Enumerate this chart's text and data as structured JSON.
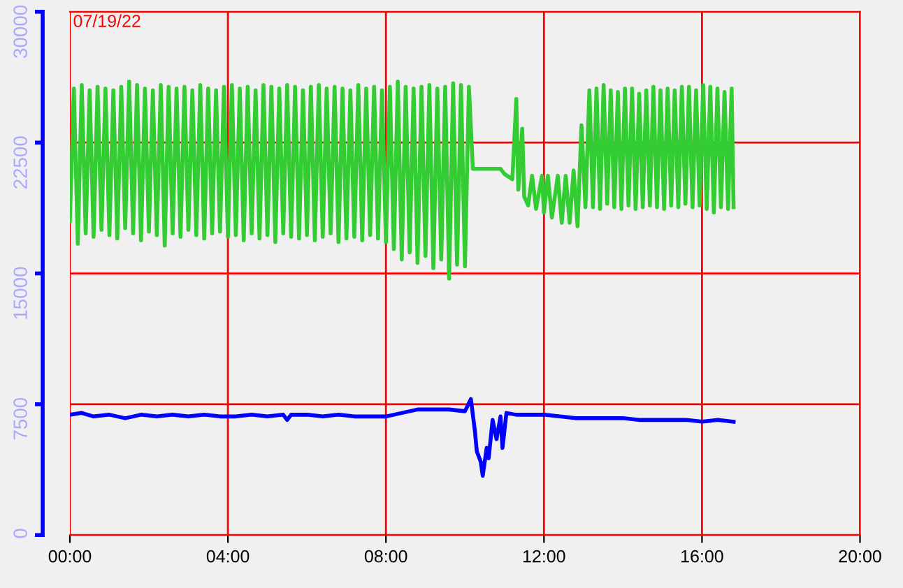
{
  "chart_data": {
    "type": "line",
    "annotations": [
      "07/19/22"
    ],
    "xlim": [
      0,
      20
    ],
    "xticks": [
      {
        "value": 0,
        "label": "00:00"
      },
      {
        "value": 4,
        "label": "04:00"
      },
      {
        "value": 8,
        "label": "08:00"
      },
      {
        "value": 12,
        "label": "12:00"
      },
      {
        "value": 16,
        "label": "16:00"
      },
      {
        "value": 20,
        "label": "20:00"
      }
    ],
    "ylim": [
      0,
      30000
    ],
    "yticks": [
      0,
      7500,
      15000,
      22500,
      30000
    ],
    "grid": true,
    "series": [
      {
        "color": "#33cc33",
        "x": [
          0,
          0.1,
          0.2,
          0.3,
          0.4,
          0.5,
          0.6,
          0.7,
          0.8,
          0.9,
          1.0,
          1.1,
          1.2,
          1.3,
          1.4,
          1.5,
          1.6,
          1.7,
          1.8,
          1.9,
          2.0,
          2.1,
          2.2,
          2.3,
          2.4,
          2.5,
          2.6,
          2.7,
          2.8,
          2.9,
          3.0,
          3.1,
          3.2,
          3.3,
          3.4,
          3.5,
          3.6,
          3.7,
          3.8,
          3.9,
          4.0,
          4.1,
          4.2,
          4.3,
          4.4,
          4.5,
          4.6,
          4.7,
          4.8,
          4.9,
          5.0,
          5.1,
          5.2,
          5.3,
          5.4,
          5.5,
          5.6,
          5.7,
          5.8,
          5.9,
          6.0,
          6.1,
          6.2,
          6.3,
          6.4,
          6.5,
          6.6,
          6.7,
          6.8,
          6.9,
          7.0,
          7.1,
          7.2,
          7.3,
          7.4,
          7.5,
          7.6,
          7.7,
          7.8,
          7.9,
          8.0,
          8.1,
          8.2,
          8.3,
          8.4,
          8.5,
          8.6,
          8.7,
          8.8,
          8.9,
          9.0,
          9.1,
          9.2,
          9.3,
          9.4,
          9.5,
          9.6,
          9.7,
          9.8,
          9.9,
          10.0,
          10.1,
          10.2,
          10.6,
          10.9,
          11.0,
          11.2,
          11.3,
          11.35,
          11.45,
          11.5,
          11.6,
          11.7,
          11.8,
          11.95,
          12.0,
          12.1,
          12.2,
          12.35,
          12.45,
          12.55,
          12.65,
          12.75,
          12.85,
          12.95,
          13.05,
          13.15,
          13.24,
          13.33,
          13.42,
          13.51,
          13.6,
          13.69,
          13.78,
          13.87,
          13.96,
          14.05,
          14.14,
          14.23,
          14.32,
          14.41,
          14.5,
          14.59,
          14.68,
          14.77,
          14.86,
          14.95,
          15.04,
          15.13,
          15.22,
          15.31,
          15.4,
          15.49,
          15.58,
          15.67,
          15.76,
          15.85,
          15.94,
          16.03,
          16.12,
          16.21,
          16.3,
          16.39,
          16.48,
          16.57,
          16.66,
          16.75,
          16.8
        ],
        "values": [
          18000,
          25600,
          16700,
          25800,
          17300,
          25500,
          17100,
          25700,
          17500,
          25600,
          17200,
          25500,
          17000,
          25700,
          17600,
          26000,
          17300,
          25800,
          16900,
          25600,
          17400,
          25500,
          17200,
          25800,
          16600,
          25700,
          17300,
          25600,
          17100,
          25700,
          17500,
          25500,
          17200,
          25800,
          17000,
          25600,
          17300,
          25500,
          17400,
          25700,
          17100,
          25800,
          17200,
          25600,
          16900,
          25700,
          17300,
          25500,
          17000,
          25800,
          17200,
          25700,
          16800,
          25600,
          17300,
          25800,
          17100,
          25700,
          17000,
          25500,
          17200,
          25700,
          16900,
          25800,
          17100,
          25600,
          17300,
          25700,
          16800,
          25600,
          17000,
          25500,
          17100,
          25800,
          16900,
          25600,
          17200,
          25700,
          17000,
          25500,
          16800,
          25700,
          16400,
          26000,
          15800,
          25700,
          16200,
          25600,
          15600,
          25700,
          16000,
          25800,
          15300,
          25600,
          15800,
          25700,
          14700,
          25900,
          15500,
          25800,
          15400,
          25700,
          21000,
          21000,
          21000,
          20700,
          20400,
          25000,
          19800,
          23300,
          19400,
          18900,
          20600,
          18700,
          20600,
          18500,
          20600,
          18200,
          20600,
          17900,
          20600,
          17900,
          20900,
          17700,
          23500,
          18800,
          25500,
          18800,
          25600,
          18700,
          25800,
          19000,
          25500,
          18800,
          25400,
          18700,
          25600,
          18900,
          25600,
          18700,
          25300,
          18800,
          25500,
          18900,
          25700,
          18800,
          25500,
          18700,
          25600,
          18900,
          25500,
          18800,
          25700,
          19000,
          25700,
          18800,
          25500,
          18900,
          25800,
          18700,
          25700,
          18500,
          25600,
          18800,
          25400,
          18700,
          25600,
          18800
        ]
      },
      {
        "color": "#0000ff",
        "x": [
          0,
          0.3,
          0.6,
          1.0,
          1.4,
          1.8,
          2.2,
          2.6,
          3.0,
          3.4,
          3.8,
          4.2,
          4.6,
          5.0,
          5.4,
          5.5,
          5.6,
          6.0,
          6.4,
          6.8,
          7.2,
          7.6,
          8.0,
          8.4,
          8.8,
          9.2,
          9.6,
          10.0,
          10.15,
          10.25,
          10.3,
          10.4,
          10.45,
          10.55,
          10.6,
          10.7,
          10.8,
          10.9,
          10.95,
          11.05,
          11.3,
          11.6,
          12.0,
          12.4,
          12.8,
          13.2,
          13.6,
          14.0,
          14.4,
          14.8,
          15.2,
          15.6,
          16.0,
          16.4,
          16.8
        ],
        "values": [
          6900,
          7000,
          6800,
          6900,
          6700,
          6900,
          6800,
          6900,
          6800,
          6900,
          6800,
          6800,
          6900,
          6800,
          6900,
          6600,
          6900,
          6900,
          6800,
          6900,
          6800,
          6800,
          6800,
          7000,
          7200,
          7200,
          7200,
          7100,
          7800,
          6000,
          4800,
          4200,
          3400,
          5000,
          4400,
          6600,
          5500,
          6800,
          5000,
          7000,
          6900,
          6900,
          6900,
          6800,
          6700,
          6700,
          6700,
          6700,
          6600,
          6600,
          6600,
          6600,
          6500,
          6600,
          6500
        ]
      }
    ]
  }
}
